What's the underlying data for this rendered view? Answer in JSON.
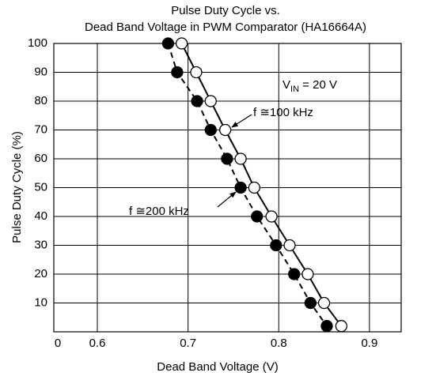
{
  "chart_data": {
    "type": "scatter",
    "title": [
      "Pulse Duty Cycle vs.",
      "Dead Band Voltage in PWM Comparator (HA16664A)"
    ],
    "x_label": "Dead Band Voltage (V)",
    "y_label": "Pulse Duty Cycle (%)",
    "xlim": [
      0.552,
      0.935
    ],
    "xticks": [
      0.6,
      0.7,
      0.8,
      0.9
    ],
    "ylim": [
      0,
      100
    ],
    "yticks": [
      0,
      10,
      20,
      30,
      40,
      50,
      60,
      70,
      80,
      90,
      100
    ],
    "grid": true,
    "series": [
      {
        "name": "f ≅200 kHz",
        "color": "#000000",
        "marker": "filled",
        "line": "dashed",
        "x": [
          0.678,
          0.688,
          0.71,
          0.725,
          0.743,
          0.758,
          0.776,
          0.797,
          0.817,
          0.835,
          0.853
        ],
        "values": [
          100,
          90,
          80,
          70,
          60,
          50,
          40,
          30,
          20,
          10,
          2
        ]
      },
      {
        "name": "f ≅100 kHz",
        "color": "#000000",
        "marker": "open",
        "line": "solid",
        "x": [
          0.693,
          0.709,
          0.725,
          0.741,
          0.758,
          0.773,
          0.792,
          0.812,
          0.832,
          0.85,
          0.869
        ],
        "values": [
          100,
          90,
          80,
          70,
          60,
          50,
          40,
          30,
          20,
          10,
          2
        ]
      }
    ],
    "annotations": [
      {
        "text": "V",
        "subscript": "IN",
        "rest": " = 20 V"
      }
    ]
  }
}
